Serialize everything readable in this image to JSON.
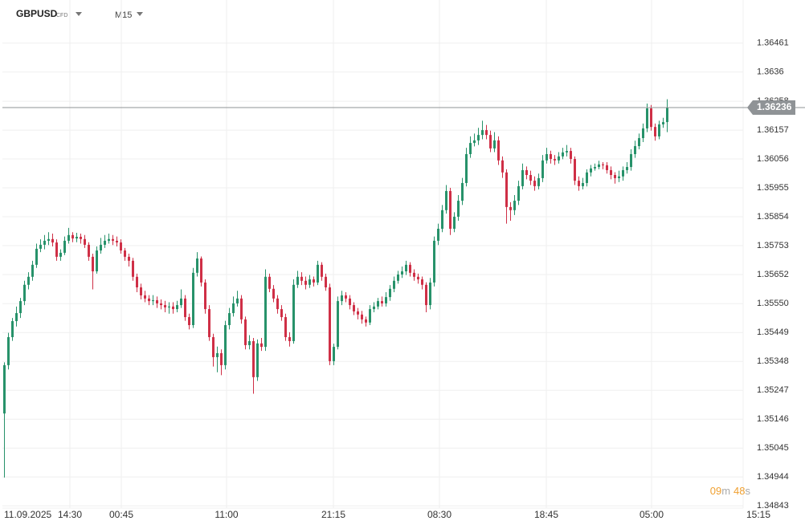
{
  "chart_data": {
    "type": "candlestick",
    "symbol": "GBPUSD",
    "instrument_tag": "CFD",
    "timeframe": "M15",
    "up_color": "#27926a",
    "down_color": "#cf2f46",
    "grid": true,
    "xlim": [
      0,
      184.4
    ],
    "xticks": [
      {
        "value": 0,
        "label": "11.09.2025"
      },
      {
        "value": 16.8,
        "label": "14:30"
      },
      {
        "value": 29.6,
        "label": "00:45"
      },
      {
        "value": 55.8,
        "label": "11:00"
      },
      {
        "value": 82.4,
        "label": "21:15"
      },
      {
        "value": 108.8,
        "label": "08:30"
      },
      {
        "value": 135.4,
        "label": "18:45"
      },
      {
        "value": 161.6,
        "label": "05:00"
      },
      {
        "value": 188.2,
        "label": "15:15"
      }
    ],
    "ylim": [
      1.34835,
      1.36612
    ],
    "yticks": [
      1.36461,
      1.3636,
      1.36258,
      1.36157,
      1.36056,
      1.35955,
      1.35854,
      1.35753,
      1.35652,
      {
        "value": 1.3555,
        "label": "1.35550"
      },
      1.35449,
      1.35348,
      1.35247,
      1.35146,
      1.35045,
      1.34944,
      1.34843
    ],
    "last_price": 1.36236,
    "timer": {
      "minutes": "09",
      "minutes_unit": "m",
      "seconds": "48",
      "seconds_unit": "s"
    },
    "open": [
      1.35166,
      1.35335,
      1.35433,
      1.35489,
      1.35517,
      1.35559,
      1.35616,
      1.35644,
      1.35686,
      1.35742,
      1.35756,
      1.3577,
      1.35776,
      1.35764,
      1.35714,
      1.35728,
      1.3577,
      1.3579,
      1.35778,
      1.35784,
      1.35776,
      1.35756,
      1.35714,
      1.35663,
      1.35736,
      1.35756,
      1.3577,
      1.35776,
      1.3577,
      1.35764,
      1.35736,
      1.35714,
      1.357,
      1.35644,
      1.35607,
      1.35579,
      1.35568,
      1.35559,
      1.35562,
      1.35551,
      1.35545,
      1.35537,
      1.3554,
      1.35531,
      1.35545,
      1.35568,
      1.35503,
      1.35475,
      1.35658,
      1.35708,
      1.35624,
      1.35531,
      1.35433,
      1.35363,
      1.35377,
      1.35335,
      1.35475,
      1.35517,
      1.35551,
      1.35568,
      1.35495,
      1.35405,
      1.35419,
      1.35293,
      1.35411,
      1.35399,
      1.35644,
      1.35602,
      1.35568,
      1.35531,
      1.35503,
      1.35433,
      1.35419,
      1.35616,
      1.35644,
      1.3563,
      1.35616,
      1.35635,
      1.35624,
      1.35686,
      1.35644,
      1.35607,
      1.35349,
      1.35399,
      1.35559,
      1.35579,
      1.35568,
      1.35545,
      1.35523,
      1.35512,
      1.35495,
      1.35484,
      1.35531,
      1.3554,
      1.35559,
      1.35551,
      1.35573,
      1.35602,
      1.3563,
      1.35652,
      1.35663,
      1.35686,
      1.35658,
      1.35644,
      1.35635,
      1.35616,
      1.35545,
      1.35624,
      1.3577,
      1.35812,
      1.35877,
      1.35944,
      1.35812,
      1.35854,
      1.3591,
      1.35972,
      1.36073,
      1.36112,
      1.36121,
      1.3614,
      1.36157,
      1.3614,
      1.36093,
      1.36121,
      1.36051,
      1.36009,
      1.35888,
      1.35877,
      1.3591,
      1.35961,
      1.36017,
      1.36,
      1.3598,
      1.35961,
      1.35989,
      1.36051,
      1.36073,
      1.36056,
      1.36051,
      1.36065,
      1.36079,
      1.36084,
      1.36056,
      1.3598,
      1.35961,
      1.35972,
      1.36009,
      1.36023,
      1.36028,
      1.36037,
      1.36034,
      1.36017,
      1.36,
      1.35989,
      1.35995,
      1.36017,
      1.36028,
      1.36073,
      1.36101,
      1.36129,
      1.36163,
      1.36233,
      1.36168,
      1.36135,
      1.36177,
      1.36185
    ],
    "high": [
      1.35345,
      1.35448,
      1.355,
      1.3554,
      1.3557,
      1.3563,
      1.3566,
      1.357,
      1.3576,
      1.35775,
      1.3579,
      1.358,
      1.35795,
      1.35775,
      1.3574,
      1.35785,
      1.35815,
      1.358,
      1.35798,
      1.35795,
      1.3579,
      1.35765,
      1.35725,
      1.3575,
      1.3578,
      1.3579,
      1.35795,
      1.3579,
      1.35785,
      1.35775,
      1.35745,
      1.35725,
      1.3571,
      1.35655,
      1.3562,
      1.35595,
      1.3558,
      1.3558,
      1.35575,
      1.35565,
      1.3556,
      1.35555,
      1.35555,
      1.3556,
      1.356,
      1.3558,
      1.35515,
      1.35675,
      1.3573,
      1.35715,
      1.35635,
      1.35545,
      1.35445,
      1.354,
      1.3539,
      1.3549,
      1.35535,
      1.35575,
      1.35595,
      1.3558,
      1.35505,
      1.3544,
      1.3543,
      1.35425,
      1.3543,
      1.3567,
      1.35655,
      1.35615,
      1.3558,
      1.35545,
      1.35515,
      1.3545,
      1.35635,
      1.35665,
      1.3566,
      1.35645,
      1.3565,
      1.35645,
      1.357,
      1.35695,
      1.35655,
      1.3562,
      1.3541,
      1.35575,
      1.35595,
      1.3559,
      1.3558,
      1.35555,
      1.35535,
      1.35525,
      1.35505,
      1.35545,
      1.35555,
      1.3557,
      1.35575,
      1.3559,
      1.35615,
      1.35645,
      1.35665,
      1.3568,
      1.357,
      1.35695,
      1.3567,
      1.35655,
      1.35645,
      1.35625,
      1.3564,
      1.35785,
      1.3583,
      1.35895,
      1.35965,
      1.35955,
      1.3587,
      1.3593,
      1.3599,
      1.36095,
      1.36135,
      1.36145,
      1.36165,
      1.3619,
      1.36175,
      1.36155,
      1.3615,
      1.36135,
      1.36065,
      1.3602,
      1.35905,
      1.3593,
      1.3598,
      1.3604,
      1.3603,
      1.36015,
      1.35995,
      1.36005,
      1.3607,
      1.36095,
      1.36085,
      1.3607,
      1.3608,
      1.36095,
      1.36105,
      1.36095,
      1.36065,
      1.35995,
      1.3599,
      1.3602,
      1.36035,
      1.3604,
      1.3605,
      1.36045,
      1.36045,
      1.3603,
      1.3601,
      1.36015,
      1.3603,
      1.36045,
      1.3609,
      1.3612,
      1.36145,
      1.3618,
      1.3625,
      1.36245,
      1.3618,
      1.3619,
      1.362,
      1.36265
    ],
    "low": [
      1.34942,
      1.3532,
      1.3542,
      1.3547,
      1.355,
      1.35545,
      1.356,
      1.3563,
      1.35675,
      1.3573,
      1.3574,
      1.35755,
      1.3575,
      1.357,
      1.357,
      1.3572,
      1.3576,
      1.35765,
      1.35765,
      1.3576,
      1.35745,
      1.357,
      1.356,
      1.35655,
      1.35725,
      1.35745,
      1.3576,
      1.35755,
      1.3575,
      1.35725,
      1.357,
      1.3568,
      1.3563,
      1.3559,
      1.35565,
      1.35555,
      1.35545,
      1.35545,
      1.35535,
      1.3553,
      1.3552,
      1.35515,
      1.35515,
      1.3552,
      1.35535,
      1.3549,
      1.3546,
      1.35465,
      1.35645,
      1.3561,
      1.35515,
      1.3542,
      1.3533,
      1.3531,
      1.353,
      1.3532,
      1.3546,
      1.35505,
      1.3554,
      1.3548,
      1.3539,
      1.3539,
      1.35235,
      1.3528,
      1.35385,
      1.35385,
      1.3559,
      1.35555,
      1.35515,
      1.3549,
      1.3542,
      1.354,
      1.3541,
      1.35605,
      1.35615,
      1.356,
      1.35605,
      1.3561,
      1.35615,
      1.3563,
      1.35595,
      1.35335,
      1.35335,
      1.3539,
      1.35545,
      1.35555,
      1.3553,
      1.3551,
      1.35495,
      1.3548,
      1.3547,
      1.35475,
      1.3552,
      1.3553,
      1.3554,
      1.3554,
      1.3556,
      1.3559,
      1.3562,
      1.3564,
      1.3565,
      1.35645,
      1.3563,
      1.3562,
      1.356,
      1.3552,
      1.3553,
      1.3561,
      1.35755,
      1.358,
      1.35865,
      1.3579,
      1.358,
      1.3584,
      1.35895,
      1.3596,
      1.3606,
      1.361,
      1.36105,
      1.36125,
      1.36125,
      1.3608,
      1.3608,
      1.36035,
      1.3599,
      1.3583,
      1.3584,
      1.3586,
      1.35895,
      1.3595,
      1.35985,
      1.35965,
      1.35945,
      1.3595,
      1.35975,
      1.3604,
      1.3604,
      1.36035,
      1.3604,
      1.36055,
      1.36065,
      1.3604,
      1.35965,
      1.35945,
      1.3595,
      1.3596,
      1.35995,
      1.36015,
      1.3602,
      1.3602,
      1.36005,
      1.35985,
      1.3597,
      1.35975,
      1.3598,
      1.36005,
      1.36015,
      1.3606,
      1.3609,
      1.36115,
      1.3615,
      1.36155,
      1.3612,
      1.36125,
      1.36165,
      1.3615
    ],
    "close": [
      1.35335,
      1.35433,
      1.35489,
      1.35517,
      1.35559,
      1.35616,
      1.35644,
      1.35686,
      1.35742,
      1.35756,
      1.3577,
      1.35776,
      1.35764,
      1.35714,
      1.35728,
      1.3577,
      1.3579,
      1.35778,
      1.35784,
      1.35776,
      1.35756,
      1.35714,
      1.35663,
      1.35736,
      1.35756,
      1.3577,
      1.35776,
      1.3577,
      1.35764,
      1.35736,
      1.35714,
      1.357,
      1.35644,
      1.35607,
      1.35579,
      1.35568,
      1.35559,
      1.35562,
      1.35551,
      1.35545,
      1.35537,
      1.3554,
      1.35531,
      1.35545,
      1.35568,
      1.35503,
      1.35475,
      1.35658,
      1.35708,
      1.35624,
      1.35531,
      1.35433,
      1.35363,
      1.35377,
      1.35335,
      1.35475,
      1.35517,
      1.35551,
      1.35568,
      1.35495,
      1.35405,
      1.35419,
      1.35293,
      1.35411,
      1.35399,
      1.35644,
      1.35602,
      1.35568,
      1.35531,
      1.35503,
      1.35433,
      1.35419,
      1.35616,
      1.35644,
      1.3563,
      1.35616,
      1.35635,
      1.35624,
      1.35686,
      1.35644,
      1.35607,
      1.35349,
      1.35399,
      1.35559,
      1.35579,
      1.35568,
      1.35545,
      1.35523,
      1.35512,
      1.35495,
      1.35484,
      1.35531,
      1.3554,
      1.35559,
      1.35551,
      1.35573,
      1.35602,
      1.3563,
      1.35652,
      1.35663,
      1.35686,
      1.35658,
      1.35644,
      1.35635,
      1.35616,
      1.35545,
      1.35624,
      1.3577,
      1.35812,
      1.35877,
      1.35944,
      1.35812,
      1.35854,
      1.3591,
      1.35972,
      1.36073,
      1.36112,
      1.36121,
      1.3614,
      1.36157,
      1.3614,
      1.36093,
      1.36121,
      1.36051,
      1.36009,
      1.35888,
      1.35877,
      1.3591,
      1.35961,
      1.36017,
      1.36,
      1.3598,
      1.35961,
      1.35989,
      1.36051,
      1.36073,
      1.36056,
      1.36051,
      1.36065,
      1.36079,
      1.36084,
      1.36056,
      1.3598,
      1.35961,
      1.35972,
      1.36009,
      1.36023,
      1.36028,
      1.36037,
      1.36034,
      1.36017,
      1.36,
      1.35989,
      1.35995,
      1.36017,
      1.36028,
      1.36073,
      1.36101,
      1.36129,
      1.36163,
      1.36233,
      1.36168,
      1.36135,
      1.36177,
      1.36185,
      1.36236
    ]
  }
}
